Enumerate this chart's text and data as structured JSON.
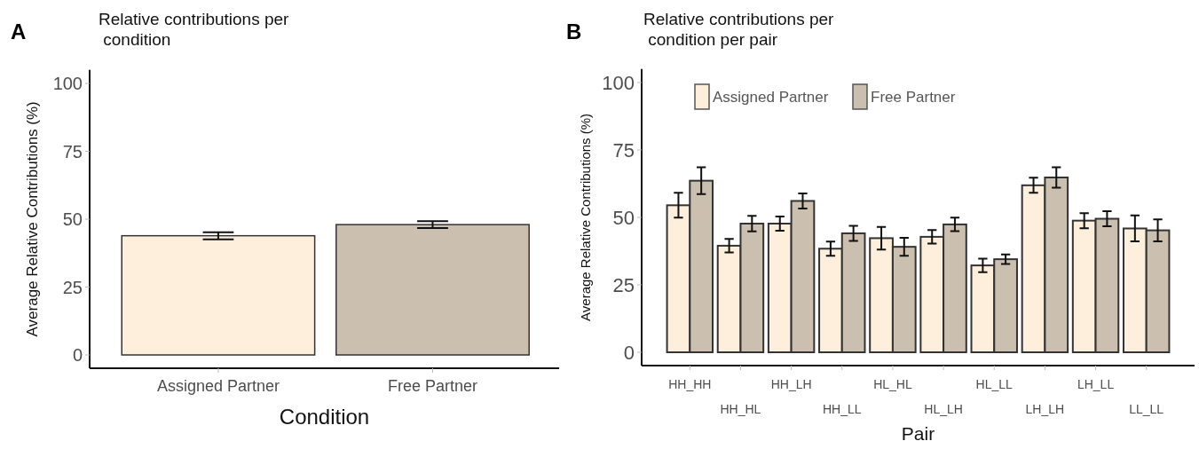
{
  "chart_data": [
    {
      "type": "bar",
      "title": "Relative contributions per\n condition",
      "xlabel": "Condition",
      "ylabel": "Average Relative Contributions (%)",
      "annotations": [
        "A"
      ],
      "categories": [
        "Assigned Partner",
        "Free Partner"
      ],
      "values": [
        43.9,
        48.0
      ],
      "errors": [
        1.3,
        1.3
      ],
      "colors": [
        "#fdefdc",
        "#cbbfaf"
      ],
      "ylim": [
        -5,
        105
      ],
      "yticks": [
        0,
        25,
        50,
        75,
        100
      ],
      "grid": false,
      "legend": false
    },
    {
      "type": "bar",
      "title": "Relative contributions per\n condition per pair",
      "xlabel": "Pair",
      "ylabel": "Average Relative Contributions (%)",
      "annotations": [
        "B"
      ],
      "categories": [
        "HH_HH",
        "HH_HL",
        "HH_LH",
        "HH_LL",
        "HL_HL",
        "HL_LH",
        "HL_LL",
        "LH_LH",
        "LH_LL",
        "LL_LL"
      ],
      "series": [
        {
          "name": "Assigned Partner",
          "color": "#fdefdc",
          "values": [
            54.5,
            39.5,
            47.7,
            38.4,
            42.3,
            42.8,
            32.2,
            61.9,
            48.8,
            45.9
          ],
          "errors": [
            4.6,
            2.5,
            2.6,
            2.6,
            4.2,
            2.5,
            2.5,
            2.8,
            2.8,
            4.8
          ]
        },
        {
          "name": "Free Partner",
          "color": "#cbbfaf",
          "values": [
            63.6,
            47.7,
            56.1,
            44.1,
            39.1,
            47.4,
            34.5,
            64.8,
            49.5,
            45.2
          ],
          "errors": [
            5,
            2.9,
            2.8,
            2.8,
            3.3,
            2.5,
            1.8,
            3.8,
            2.8,
            4.1
          ]
        }
      ],
      "ylim": [
        -5,
        105
      ],
      "yticks": [
        0,
        25,
        50,
        75,
        100
      ],
      "grid": false,
      "legend": "top"
    }
  ]
}
